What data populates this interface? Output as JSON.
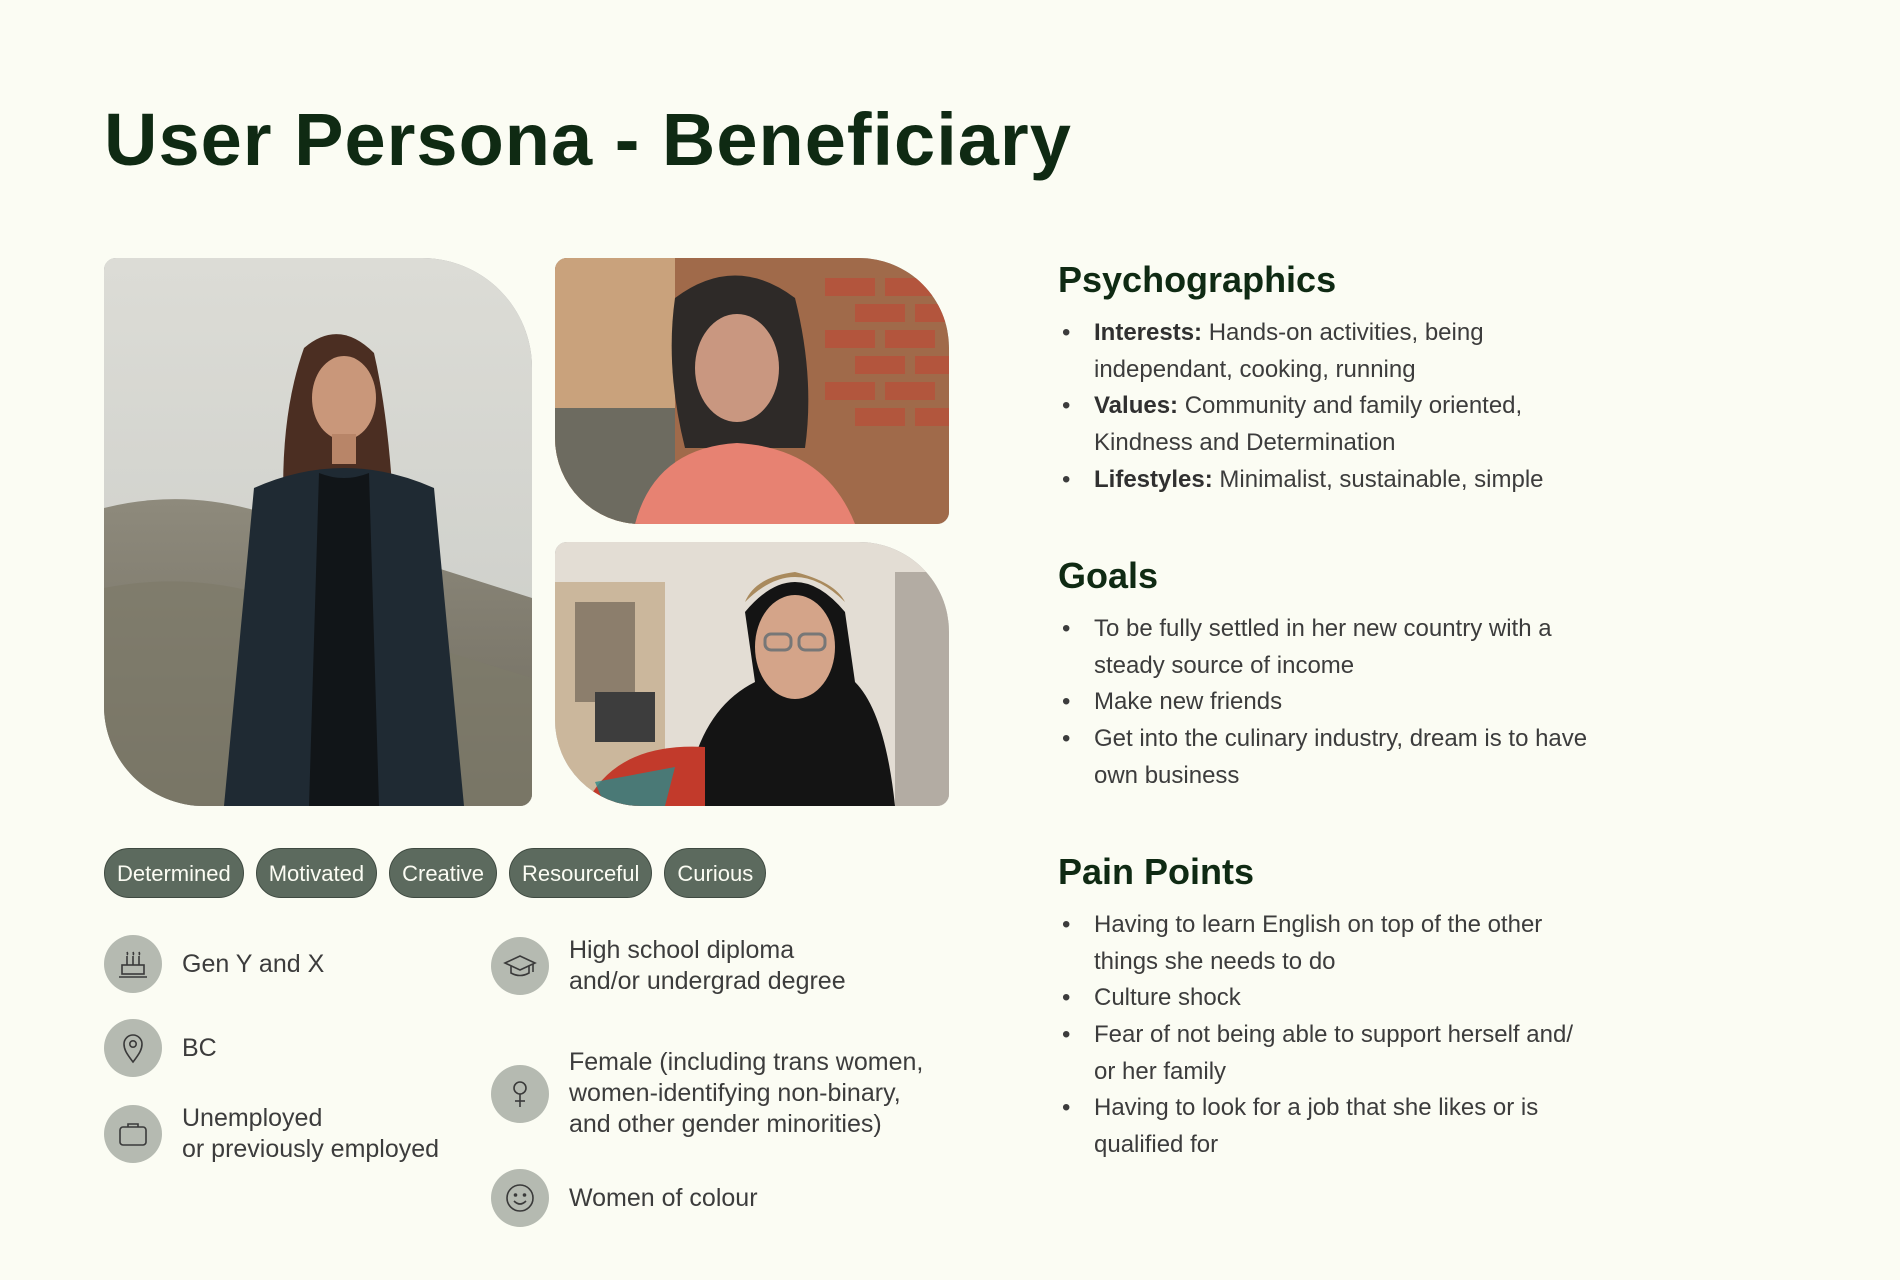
{
  "title": "User Persona - Beneficiary",
  "traits": [
    "Determined",
    "Motivated",
    "Creative",
    "Resourceful",
    "Curious"
  ],
  "facts": {
    "generation": {
      "icon": "birthday-cake-icon",
      "lines": [
        "Gen Y and X"
      ]
    },
    "location": {
      "icon": "location-pin-icon",
      "lines": [
        "BC"
      ]
    },
    "employment": {
      "icon": "briefcase-icon",
      "lines": [
        "Unemployed",
        "or previously employed"
      ]
    },
    "education": {
      "icon": "graduation-cap-icon",
      "lines": [
        "High school diploma",
        "and/or undergrad degree"
      ]
    },
    "gender": {
      "icon": "female-symbol-icon",
      "lines": [
        "Female (including trans women,",
        "women-identifying non-binary,",
        "and other gender minorities)"
      ]
    },
    "ethnicity": {
      "icon": "smiley-face-icon",
      "lines": [
        "Women of colour"
      ]
    }
  },
  "psychographics": {
    "heading": "Psychographics",
    "items": [
      {
        "label": "Interests:",
        "lines": [
          "Hands-on activities, being",
          "independant, cooking, running"
        ]
      },
      {
        "label": "Values:",
        "lines": [
          "Community and family oriented,",
          "Kindness and Determination"
        ]
      },
      {
        "label": "Lifestyles:",
        "lines": [
          "Minimalist, sustainable, simple"
        ]
      }
    ]
  },
  "goals": {
    "heading": "Goals",
    "items": [
      [
        "To be fully settled in her new country with a",
        "steady source of income"
      ],
      [
        "Make new friends"
      ],
      [
        "Get into the culinary industry, dream is to have",
        "own business"
      ]
    ]
  },
  "pain_points": {
    "heading": "Pain Points",
    "items": [
      [
        "Having to learn English on top of the other",
        "things she needs to do"
      ],
      [
        "Culture shock"
      ],
      [
        "Fear of not being able to support herself and/",
        "or her family"
      ],
      [
        "Having to look for a job that she likes or is",
        "qualified for"
      ]
    ]
  },
  "colors": {
    "background": "#fbfcf3",
    "heading": "#0f2a13",
    "tag_fill": "#5c6a5e",
    "icon_circle": "#b5bab1"
  }
}
